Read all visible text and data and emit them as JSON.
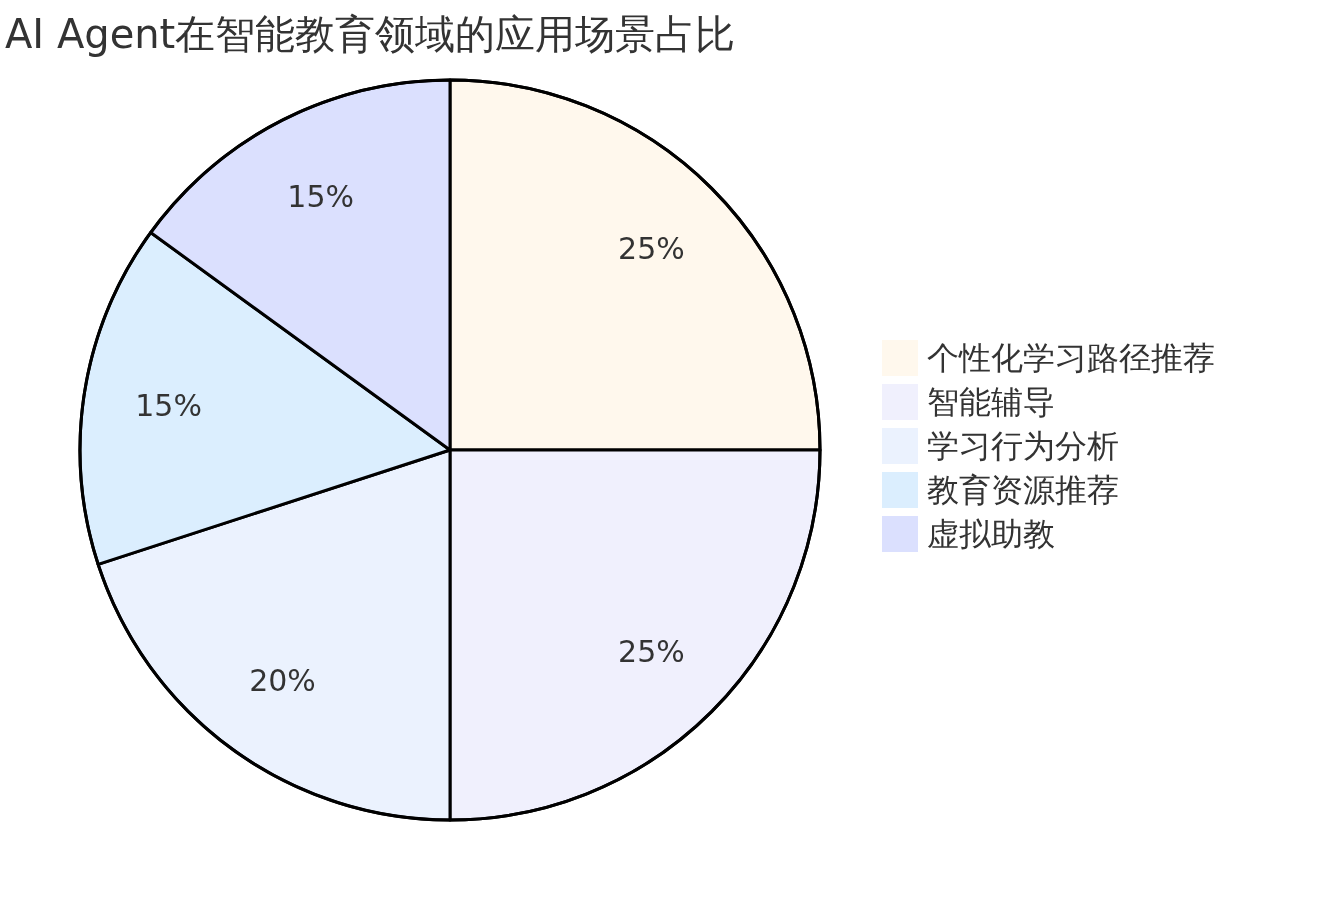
{
  "chart_data": {
    "type": "pie",
    "title": "AI Agent在智能教育领域的应用场景占比",
    "categories": [
      "个性化学习路径推荐",
      "智能辅导",
      "学习行为分析",
      "教育资源推荐",
      "虚拟助教"
    ],
    "values": [
      25,
      25,
      20,
      15,
      15
    ],
    "colors": [
      "#fff8ed",
      "#f0f0fd",
      "#ebf2fe",
      "#dbeefe",
      "#dbe0fe"
    ],
    "value_labels": [
      "25%",
      "25%",
      "20%",
      "15%",
      "15%"
    ],
    "legend": "right"
  }
}
